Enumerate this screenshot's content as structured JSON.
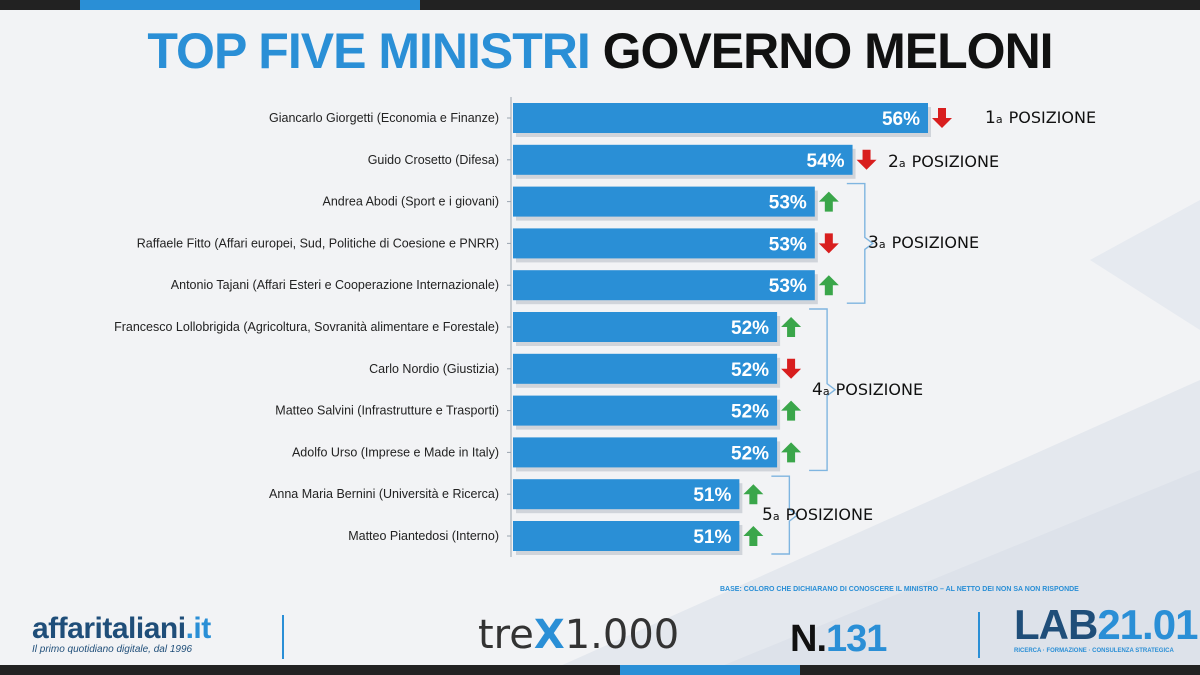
{
  "title": {
    "part1": "TOP FIVE MINISTRI",
    "part2": "GOVERNO MELONI"
  },
  "colors": {
    "bar": "#2a8fd6",
    "bar_dark": "#1a6fb5",
    "arrow_up": "#3aa64a",
    "arrow_down": "#d81e1e",
    "title_blue": "#2a8fd6"
  },
  "chart_data": {
    "type": "bar",
    "orientation": "horizontal",
    "title": "TOP FIVE MINISTRI GOVERNO MELONI",
    "categories": [
      "Giancarlo Giorgetti (Economia e Finanze)",
      "Guido Crosetto (Difesa)",
      "Andrea Abodi (Sport e i giovani)",
      "Raffaele Fitto (Affari europei, Sud, Politiche di Coesione e PNRR)",
      "Antonio Tajani (Affari Esteri e Cooperazione Internazionale)",
      "Francesco Lollobrigida (Agricoltura, Sovranità alimentare e Forestale)",
      "Carlo Nordio (Giustizia)",
      "Matteo Salvini (Infrastrutture e Trasporti)",
      "Adolfo Urso (Imprese e Made in Italy)",
      "Anna Maria Bernini (Università e Ricerca)",
      "Matteo Piantedosi (Interno)"
    ],
    "values": [
      56,
      54,
      53,
      53,
      53,
      52,
      52,
      52,
      52,
      51,
      51
    ],
    "value_labels": [
      "56%",
      "54%",
      "53%",
      "53%",
      "53%",
      "52%",
      "52%",
      "52%",
      "52%",
      "51%",
      "51%"
    ],
    "trend": [
      "down",
      "down",
      "up",
      "down",
      "up",
      "up",
      "down",
      "up",
      "up",
      "up",
      "up"
    ],
    "xlim": [
      45,
      57
    ],
    "ranks": [
      {
        "num": "1",
        "sup": "a",
        "label": "POSIZIONE",
        "rows": [
          0,
          0
        ]
      },
      {
        "num": "2",
        "sup": "a",
        "label": "POSIZIONE",
        "rows": [
          1,
          1
        ]
      },
      {
        "num": "3",
        "sup": "a",
        "label": "POSIZIONE",
        "rows": [
          2,
          4
        ]
      },
      {
        "num": "4",
        "sup": "a",
        "label": "POSIZIONE",
        "rows": [
          5,
          8
        ]
      },
      {
        "num": "5",
        "sup": "a",
        "label": "POSIZIONE",
        "rows": [
          9,
          10
        ]
      }
    ]
  },
  "note": "BASE: COLORO CHE DICHIARANO DI CONOSCERE IL MINISTRO – AL NETTO DEI NON SA NON RISPONDE",
  "footer": {
    "affari_name": "affaritaliani",
    "affari_suffix": ".it",
    "affari_tagline": "Il primo quotidiano digitale, dal 1996",
    "trex_pre": "tre",
    "trex_x": "X",
    "trex_post": "1.000",
    "numero_prefix": "N.",
    "numero_value": "131",
    "lab_left": "LAB",
    "lab_right": "21.01",
    "lab_tagline": "RICERCA · FORMAZIONE · CONSULENZA STRATEGICA"
  }
}
